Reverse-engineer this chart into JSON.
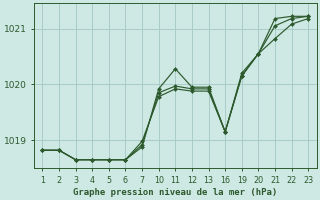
{
  "background_color": "#cee8e4",
  "grid_color": "#a8ccc8",
  "line_color": "#2d5a2d",
  "marker_color": "#2d5a2d",
  "title": "Graphe pression niveau de la mer (hPa)",
  "title_color": "#2d5a2d",
  "ylim": [
    1018.5,
    1021.45
  ],
  "yticks": [
    1019,
    1020,
    1021
  ],
  "lines": [
    {
      "y": [
        1018.82,
        1018.82,
        1018.65,
        1018.65,
        1018.65,
        1018.65,
        1018.88,
        1019.92,
        1020.28,
        1019.95,
        1019.95,
        1019.15,
        1020.2,
        1020.55,
        1021.18,
        1021.22,
        1021.22
      ]
    },
    {
      "y": [
        1018.82,
        1018.82,
        1018.65,
        1018.65,
        1018.65,
        1018.65,
        1018.92,
        1019.85,
        1019.97,
        1019.92,
        1019.92,
        1019.15,
        1020.15,
        1020.55,
        1021.05,
        1021.18,
        1021.22
      ]
    },
    {
      "y": [
        1018.82,
        1018.82,
        1018.65,
        1018.65,
        1018.65,
        1018.65,
        1018.98,
        1019.78,
        1019.92,
        1019.88,
        1019.88,
        1019.15,
        1020.15,
        1020.55,
        1020.82,
        1021.08,
        1021.18
      ]
    }
  ],
  "xtick_labels": [
    "1",
    "2",
    "3",
    "4",
    "5",
    "6",
    "7",
    "10",
    "11",
    "12",
    "13",
    "16",
    "19",
    "20",
    "21",
    "22",
    "23"
  ],
  "ylabel_size": 6.5,
  "xlabel_size": 6.5,
  "tick_label_size": 5.8
}
